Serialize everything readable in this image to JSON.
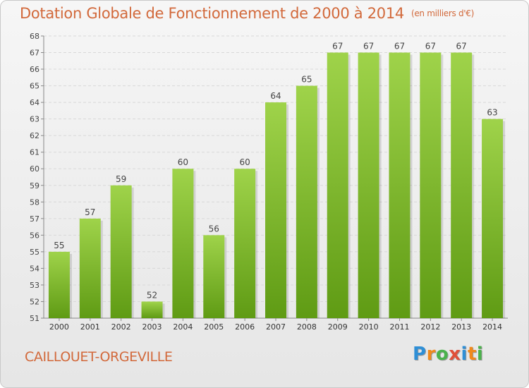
{
  "header": {
    "title": "Dotation Globale de Fonctionnement de 2000 à 2014",
    "unit": "(en milliers d'€)"
  },
  "footer": {
    "commune": "CAILLOUET-ORGEVILLE",
    "logo_text": "Proxiti"
  },
  "colors": {
    "title": "#d2693b",
    "bar_top": "#9fd34a",
    "bar_bottom": "#5f9b14",
    "grid": "#d8d8d8"
  },
  "chart_data": {
    "type": "bar",
    "title": "Dotation Globale de Fonctionnement de 2000 à 2014",
    "subtitle": "(en milliers d'€)",
    "xlabel": "",
    "ylabel": "",
    "categories": [
      "2000",
      "2001",
      "2002",
      "2003",
      "2004",
      "2005",
      "2006",
      "2007",
      "2008",
      "2009",
      "2010",
      "2011",
      "2012",
      "2013",
      "2014"
    ],
    "values": [
      55,
      57,
      59,
      52,
      60,
      56,
      60,
      64,
      65,
      67,
      67,
      67,
      67,
      67,
      63
    ],
    "ylim": [
      51,
      68
    ],
    "yticks": [
      51,
      52,
      53,
      54,
      55,
      56,
      57,
      58,
      59,
      60,
      61,
      62,
      63,
      64,
      65,
      66,
      67,
      68
    ],
    "grid": true,
    "data_labels": true
  }
}
